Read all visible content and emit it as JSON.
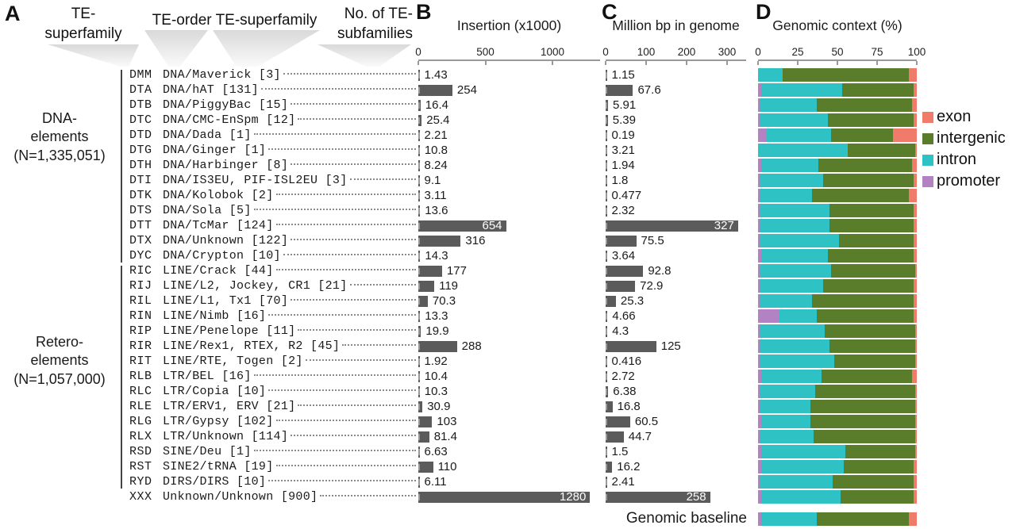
{
  "panels": {
    "a": "A",
    "b": "B",
    "c": "C",
    "d": "D"
  },
  "header": {
    "te_superfamily_code": {
      "line1": "TE-",
      "line2": "superfamily"
    },
    "te_order_superfamily": "TE-order TE-superfamily",
    "no_of_subfamilies": {
      "line1": "No. of TE-",
      "line2": "subfamilies"
    }
  },
  "groups": [
    {
      "name": "DNA-",
      "sub": "elements",
      "n": "(N=1,335,051)"
    },
    {
      "name": "Retero-",
      "sub": "elements",
      "n": "(N=1,057,000)"
    }
  ],
  "legend": {
    "items": [
      {
        "key": "exon",
        "label": "exon"
      },
      {
        "key": "intergenic",
        "label": "intergenic"
      },
      {
        "key": "intron",
        "label": "intron"
      },
      {
        "key": "promoter",
        "label": "promoter"
      }
    ],
    "colors": {
      "exon": "#f07b6b",
      "intergenic": "#5a7d2b",
      "intron": "#2fc2c4",
      "promoter": "#b282c2"
    }
  },
  "bar_color": "#5b5b5b",
  "baseline": {
    "label": "Genomic baseline",
    "context": {
      "promoter": 2,
      "intron": 35,
      "intergenic": 58,
      "exon": 5
    }
  },
  "chart_data": {
    "type": "bar",
    "axes": {
      "insertion": {
        "title": "Insertion (x1000)",
        "ticks": [
          0,
          500,
          1000
        ],
        "max": 1355
      },
      "mbp": {
        "title": "Million bp in genome",
        "ticks": [
          0,
          100,
          200,
          300
        ],
        "max": 347
      },
      "context": {
        "title": "Genomic context (%)",
        "ticks": [
          0,
          25,
          50,
          75,
          100
        ],
        "max": 100
      }
    },
    "rows": [
      {
        "code": "DMM",
        "name": "DNA/Maverick",
        "subfamilies": 3,
        "insertion": "1.43",
        "mbp": "1.15",
        "context": {
          "promoter": 0.5,
          "intron": 15,
          "intergenic": 79.5,
          "exon": 5
        }
      },
      {
        "code": "DTA",
        "name": "DNA/hAT",
        "subfamilies": 131,
        "insertion": "254",
        "mbp": "67.6",
        "context": {
          "promoter": 2,
          "intron": 51,
          "intergenic": 45,
          "exon": 2
        }
      },
      {
        "code": "DTB",
        "name": "DNA/PiggyBac",
        "subfamilies": 15,
        "insertion": "16.4",
        "mbp": "5.91",
        "context": {
          "promoter": 1,
          "intron": 36,
          "intergenic": 60,
          "exon": 3
        }
      },
      {
        "code": "DTC",
        "name": "DNA/CMC-EnSpm",
        "subfamilies": 12,
        "insertion": "25.4",
        "mbp": "5.39",
        "context": {
          "promoter": 1.5,
          "intron": 42.5,
          "intergenic": 54,
          "exon": 2
        }
      },
      {
        "code": "DTD",
        "name": "DNA/Dada",
        "subfamilies": 1,
        "insertion": "2.21",
        "mbp": "0.19",
        "context": {
          "promoter": 5,
          "intron": 41,
          "intergenic": 39,
          "exon": 15
        }
      },
      {
        "code": "DTG",
        "name": "DNA/Ginger",
        "subfamilies": 1,
        "insertion": "10.8",
        "mbp": "3.21",
        "context": {
          "promoter": 0.5,
          "intron": 56,
          "intergenic": 42.5,
          "exon": 1
        }
      },
      {
        "code": "DTH",
        "name": "DNA/Harbinger",
        "subfamilies": 8,
        "insertion": "8.24",
        "mbp": "1.94",
        "context": {
          "promoter": 2,
          "intron": 36,
          "intergenic": 59,
          "exon": 3
        }
      },
      {
        "code": "DTI",
        "name": "DNA/IS3EU, PIF-ISL2EU",
        "subfamilies": 3,
        "insertion": "9.1",
        "mbp": "1.8",
        "context": {
          "promoter": 1,
          "intron": 40,
          "intergenic": 57,
          "exon": 2
        }
      },
      {
        "code": "DTK",
        "name": "DNA/Kolobok",
        "subfamilies": 2,
        "insertion": "3.11",
        "mbp": "0.477",
        "context": {
          "promoter": 1,
          "intron": 33,
          "intergenic": 61,
          "exon": 5
        }
      },
      {
        "code": "DTS",
        "name": "DNA/Sola",
        "subfamilies": 5,
        "insertion": "13.6",
        "mbp": "2.32",
        "context": {
          "promoter": 1,
          "intron": 44,
          "intergenic": 53,
          "exon": 2
        }
      },
      {
        "code": "DTT",
        "name": "DNA/TcMar",
        "subfamilies": 124,
        "insertion": "654",
        "mbp": "327",
        "context": {
          "promoter": 1,
          "intron": 44,
          "intergenic": 53,
          "exon": 2
        }
      },
      {
        "code": "DTX",
        "name": "DNA/Unknown",
        "subfamilies": 122,
        "insertion": "316",
        "mbp": "75.5",
        "context": {
          "promoter": 1,
          "intron": 50,
          "intergenic": 47,
          "exon": 2
        }
      },
      {
        "code": "DYC",
        "name": "DNA/Crypton",
        "subfamilies": 10,
        "insertion": "14.3",
        "mbp": "3.64",
        "context": {
          "promoter": 2,
          "intron": 42,
          "intergenic": 54,
          "exon": 2
        }
      },
      {
        "code": "RIC",
        "name": "LINE/Crack",
        "subfamilies": 44,
        "insertion": "177",
        "mbp": "92.8",
        "context": {
          "promoter": 1,
          "intron": 45,
          "intergenic": 53,
          "exon": 1
        }
      },
      {
        "code": "RIJ",
        "name": "LINE/L2, Jockey, CR1",
        "subfamilies": 21,
        "insertion": "119",
        "mbp": "72.9",
        "context": {
          "promoter": 1,
          "intron": 40,
          "intergenic": 57,
          "exon": 2
        }
      },
      {
        "code": "RIL",
        "name": "LINE/L1, Tx1",
        "subfamilies": 70,
        "insertion": "70.3",
        "mbp": "25.3",
        "context": {
          "promoter": 1,
          "intron": 33,
          "intergenic": 64,
          "exon": 2
        }
      },
      {
        "code": "RIN",
        "name": "LINE/Nimb",
        "subfamilies": 16,
        "insertion": "13.3",
        "mbp": "4.66",
        "context": {
          "promoter": 13,
          "intron": 24,
          "intergenic": 61,
          "exon": 2
        }
      },
      {
        "code": "RIP",
        "name": "LINE/Penelope",
        "subfamilies": 11,
        "insertion": "19.9",
        "mbp": "4.3",
        "context": {
          "promoter": 1,
          "intron": 41,
          "intergenic": 57,
          "exon": 1
        }
      },
      {
        "code": "RIR",
        "name": "LINE/Rex1, RTEX, R2",
        "subfamilies": 45,
        "insertion": "288",
        "mbp": "125",
        "context": {
          "promoter": 1,
          "intron": 44,
          "intergenic": 54,
          "exon": 1
        }
      },
      {
        "code": "RIT",
        "name": "LINE/RTE, Togen",
        "subfamilies": 2,
        "insertion": "1.92",
        "mbp": "0.416",
        "context": {
          "promoter": 1,
          "intron": 47,
          "intergenic": 51,
          "exon": 1
        }
      },
      {
        "code": "RLB",
        "name": "LTR/BEL",
        "subfamilies": 16,
        "insertion": "10.4",
        "mbp": "2.72",
        "context": {
          "promoter": 2,
          "intron": 38,
          "intergenic": 57,
          "exon": 3
        }
      },
      {
        "code": "RLC",
        "name": "LTR/Copia",
        "subfamilies": 10,
        "insertion": "10.3",
        "mbp": "6.38",
        "context": {
          "promoter": 1,
          "intron": 35,
          "intergenic": 63,
          "exon": 1
        }
      },
      {
        "code": "RLE",
        "name": "LTR/ERV1, ERV",
        "subfamilies": 21,
        "insertion": "30.9",
        "mbp": "16.8",
        "context": {
          "promoter": 1,
          "intron": 32,
          "intergenic": 66,
          "exon": 1
        }
      },
      {
        "code": "RLG",
        "name": "LTR/Gypsy",
        "subfamilies": 102,
        "insertion": "103",
        "mbp": "60.5",
        "context": {
          "promoter": 2,
          "intron": 31,
          "intergenic": 66,
          "exon": 1
        }
      },
      {
        "code": "RLX",
        "name": "LTR/Unknown",
        "subfamilies": 114,
        "insertion": "81.4",
        "mbp": "44.7",
        "context": {
          "promoter": 1,
          "intron": 34,
          "intergenic": 64,
          "exon": 1
        }
      },
      {
        "code": "RSD",
        "name": "SINE/Deu",
        "subfamilies": 1,
        "insertion": "6.63",
        "mbp": "1.5",
        "context": {
          "promoter": 2,
          "intron": 53,
          "intergenic": 44,
          "exon": 1
        }
      },
      {
        "code": "RST",
        "name": "SINE2/tRNA",
        "subfamilies": 19,
        "insertion": "110",
        "mbp": "16.2",
        "context": {
          "promoter": 2,
          "intron": 52,
          "intergenic": 44,
          "exon": 2
        }
      },
      {
        "code": "RYD",
        "name": "DIRS/DIRS",
        "subfamilies": 10,
        "insertion": "6.11",
        "mbp": "2.41",
        "context": {
          "promoter": 1,
          "intron": 46,
          "intergenic": 51,
          "exon": 2
        }
      },
      {
        "code": "XXX",
        "name": "Unknown/Unknown",
        "subfamilies": 900,
        "insertion": "1280",
        "mbp": "258",
        "context": {
          "promoter": 2,
          "intron": 50,
          "intergenic": 46,
          "exon": 2
        }
      }
    ]
  }
}
